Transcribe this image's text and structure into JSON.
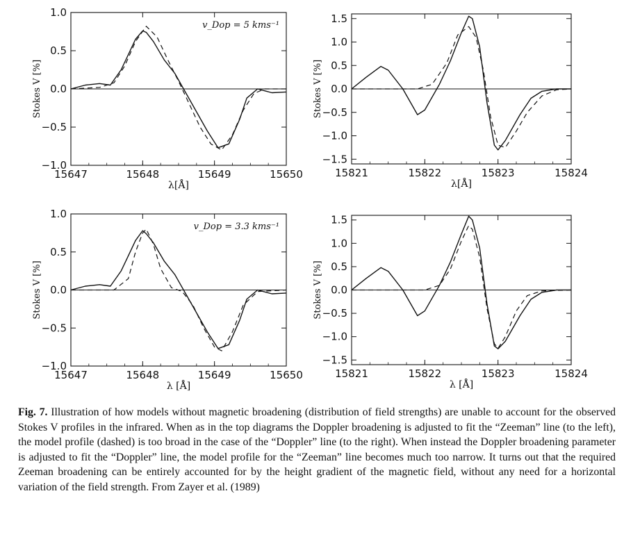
{
  "figure": {
    "caption_label": "Fig. 7.",
    "caption_text": "Illustration of how models without magnetic broadening (distribution of field strengths) are unable to account for the observed Stokes V profiles in the infrared. When as in the top diagrams the Doppler broadening is adjusted to fit the “Zeeman” line (to the left), the model profile (dashed) is too broad in the case of the “Doppler” line (to the right). When instead the Doppler broadening parameter is adjusted to fit the “Doppler” line, the model profile for the “Zeeman” line becomes much too narrow. It turns out that the required Zeeman broadening can be entirely accounted for by the height gradient of the magnetic field, without any need for a horizontal variation of the field strength. From Zayer et al. (1989)"
  },
  "chart_data": [
    {
      "type": "line",
      "panel": "top-left",
      "xlabel": "λ[Å]",
      "ylabel": "Stokes V [%]",
      "xlim": [
        15647,
        15650
      ],
      "ylim": [
        -1.0,
        1.0
      ],
      "xticks": [
        15647,
        15648,
        15649,
        15650
      ],
      "xtick_labels": [
        "15647",
        "15648",
        "15649",
        "15650"
      ],
      "yticks": [
        -1.0,
        -0.5,
        0.0,
        0.5,
        1.0
      ],
      "ytick_labels": [
        "−1.0",
        "−0.5",
        "0.0",
        "0.5",
        "1.0"
      ],
      "annotation": "v_Dop = 5 kms⁻¹",
      "series": [
        {
          "name": "observed",
          "style": "solid",
          "x": [
            15647.0,
            15647.2,
            15647.4,
            15647.55,
            15647.7,
            15647.8,
            15647.9,
            15648.0,
            15648.05,
            15648.15,
            15648.3,
            15648.45,
            15648.6,
            15648.75,
            15648.9,
            15649.05,
            15649.2,
            15649.35,
            15649.45,
            15649.6,
            15649.8,
            15650.0
          ],
          "y": [
            0.0,
            0.05,
            0.07,
            0.05,
            0.25,
            0.45,
            0.65,
            0.76,
            0.74,
            0.62,
            0.38,
            0.2,
            -0.05,
            -0.3,
            -0.55,
            -0.77,
            -0.72,
            -0.4,
            -0.12,
            0.0,
            -0.05,
            -0.04
          ]
        },
        {
          "name": "model",
          "style": "dashed",
          "x": [
            15647.0,
            15647.4,
            15647.6,
            15647.75,
            15647.9,
            15648.05,
            15648.2,
            15648.35,
            15648.5,
            15648.65,
            15648.8,
            15648.95,
            15649.1,
            15649.25,
            15649.4,
            15649.55,
            15649.7,
            15650.0
          ],
          "y": [
            0.0,
            0.02,
            0.08,
            0.3,
            0.62,
            0.82,
            0.68,
            0.38,
            0.1,
            -0.2,
            -0.5,
            -0.72,
            -0.8,
            -0.6,
            -0.28,
            -0.06,
            0.0,
            0.0
          ]
        }
      ]
    },
    {
      "type": "line",
      "panel": "top-right",
      "xlabel": "λ[Å]",
      "ylabel": "Stokes V [%]",
      "xlim": [
        15821,
        15824
      ],
      "ylim": [
        -1.6,
        1.6
      ],
      "xticks": [
        15821,
        15822,
        15823,
        15824
      ],
      "xtick_labels": [
        "15821",
        "15822",
        "15823",
        "15824"
      ],
      "yticks": [
        -1.5,
        -1.0,
        -0.5,
        0.0,
        0.5,
        1.0,
        1.5
      ],
      "ytick_labels": [
        "−1.5",
        "−1.0",
        "−0.5",
        "0.0",
        "0.5",
        "1.0",
        "1.5"
      ],
      "series": [
        {
          "name": "observed",
          "style": "solid",
          "x": [
            15821.0,
            15821.2,
            15821.4,
            15821.5,
            15821.7,
            15821.9,
            15822.0,
            15822.2,
            15822.35,
            15822.5,
            15822.6,
            15822.65,
            15822.75,
            15822.85,
            15822.95,
            15823.0,
            15823.1,
            15823.3,
            15823.45,
            15823.6,
            15823.8,
            15824.0
          ],
          "y": [
            0.0,
            0.25,
            0.48,
            0.4,
            0.0,
            -0.55,
            -0.45,
            0.1,
            0.6,
            1.2,
            1.55,
            1.5,
            0.9,
            -0.3,
            -1.2,
            -1.3,
            -1.1,
            -0.55,
            -0.2,
            -0.05,
            0.0,
            0.0
          ]
        },
        {
          "name": "model",
          "style": "dashed",
          "x": [
            15821.0,
            15821.6,
            15821.9,
            15822.1,
            15822.3,
            15822.45,
            15822.6,
            15822.7,
            15822.8,
            15822.9,
            15823.0,
            15823.1,
            15823.25,
            15823.4,
            15823.6,
            15823.8,
            15824.0
          ],
          "y": [
            0.0,
            0.0,
            0.0,
            0.1,
            0.55,
            1.15,
            1.33,
            1.1,
            0.4,
            -0.6,
            -1.2,
            -1.25,
            -0.9,
            -0.5,
            -0.15,
            -0.02,
            0.0
          ]
        }
      ]
    },
    {
      "type": "line",
      "panel": "bottom-left",
      "xlabel": "λ [Å]",
      "ylabel": "Stokes V [%]",
      "xlim": [
        15647,
        15650
      ],
      "ylim": [
        -1.0,
        1.0
      ],
      "xticks": [
        15647,
        15648,
        15649,
        15650
      ],
      "xtick_labels": [
        "15647",
        "15648",
        "15649",
        "15650"
      ],
      "yticks": [
        -1.0,
        -0.5,
        0.0,
        0.5,
        1.0
      ],
      "ytick_labels": [
        "−1.0",
        "−0.5",
        "0.0",
        "0.5",
        "1.0"
      ],
      "annotation": "v_Dop = 3.3 kms⁻¹",
      "series": [
        {
          "name": "observed",
          "style": "solid",
          "x": [
            15647.0,
            15647.2,
            15647.4,
            15647.55,
            15647.7,
            15647.8,
            15647.9,
            15648.0,
            15648.05,
            15648.15,
            15648.3,
            15648.45,
            15648.6,
            15648.75,
            15648.9,
            15649.05,
            15649.2,
            15649.35,
            15649.45,
            15649.6,
            15649.8,
            15650.0
          ],
          "y": [
            0.0,
            0.05,
            0.07,
            0.05,
            0.25,
            0.45,
            0.65,
            0.78,
            0.74,
            0.62,
            0.38,
            0.2,
            -0.05,
            -0.3,
            -0.55,
            -0.77,
            -0.72,
            -0.4,
            -0.12,
            0.0,
            -0.05,
            -0.04
          ]
        },
        {
          "name": "model",
          "style": "dashed",
          "x": [
            15647.0,
            15647.6,
            15647.8,
            15647.9,
            15648.0,
            15648.05,
            15648.15,
            15648.25,
            15648.4,
            15648.55,
            15648.7,
            15648.85,
            15649.0,
            15649.1,
            15649.25,
            15649.4,
            15649.6,
            15650.0
          ],
          "y": [
            0.0,
            0.0,
            0.15,
            0.5,
            0.75,
            0.8,
            0.6,
            0.28,
            0.03,
            -0.02,
            -0.2,
            -0.5,
            -0.75,
            -0.8,
            -0.55,
            -0.2,
            -0.02,
            0.0
          ]
        }
      ]
    },
    {
      "type": "line",
      "panel": "bottom-right",
      "xlabel": "λ [Å]",
      "ylabel": "Stokes V [%]",
      "xlim": [
        15821,
        15824
      ],
      "ylim": [
        -1.6,
        1.6
      ],
      "xticks": [
        15821,
        15822,
        15823,
        15824
      ],
      "xtick_labels": [
        "15821",
        "15822",
        "15823",
        "15824"
      ],
      "yticks": [
        -1.5,
        -1.0,
        -0.5,
        0.0,
        0.5,
        1.0,
        1.5
      ],
      "ytick_labels": [
        "−1.5",
        "−1.0",
        "−0.5",
        "0.0",
        "0.5",
        "1.0",
        "1.5"
      ],
      "series": [
        {
          "name": "observed",
          "style": "solid",
          "x": [
            15821.0,
            15821.2,
            15821.4,
            15821.5,
            15821.7,
            15821.9,
            15822.0,
            15822.2,
            15822.35,
            15822.5,
            15822.6,
            15822.65,
            15822.75,
            15822.85,
            15822.95,
            15823.0,
            15823.1,
            15823.3,
            15823.45,
            15823.6,
            15823.8,
            15824.0
          ],
          "y": [
            0.0,
            0.25,
            0.48,
            0.4,
            0.0,
            -0.55,
            -0.45,
            0.1,
            0.6,
            1.2,
            1.58,
            1.5,
            0.9,
            -0.3,
            -1.2,
            -1.26,
            -1.1,
            -0.55,
            -0.2,
            -0.05,
            0.0,
            0.0
          ]
        },
        {
          "name": "model",
          "style": "dashed",
          "x": [
            15821.0,
            15821.8,
            15822.0,
            15822.2,
            15822.35,
            15822.5,
            15822.6,
            15822.65,
            15822.75,
            15822.85,
            15822.95,
            15823.0,
            15823.1,
            15823.25,
            15823.4,
            15823.6,
            15824.0
          ],
          "y": [
            0.0,
            0.0,
            0.0,
            0.1,
            0.45,
            1.05,
            1.38,
            1.3,
            0.7,
            -0.4,
            -1.15,
            -1.25,
            -1.0,
            -0.45,
            -0.12,
            -0.02,
            0.0
          ]
        }
      ]
    }
  ]
}
